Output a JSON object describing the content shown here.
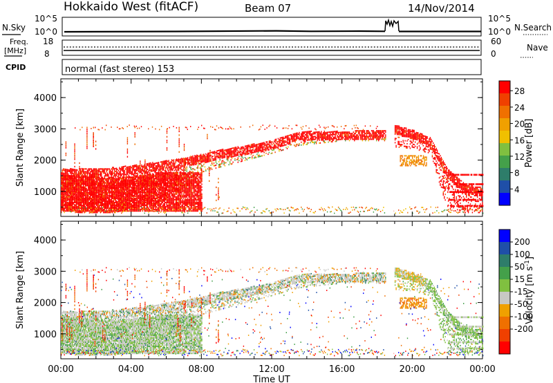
{
  "header": {
    "station": "Hokkaido West (fitACF)",
    "beam": "Beam 07",
    "date": "14/Nov/2014"
  },
  "strip": {
    "nsky_label": "N.Sky",
    "nsky_ticks": [
      "10^5",
      "10^0"
    ],
    "nsearch_label": "N.Search",
    "nsearch_ticks": [
      "10^5",
      "10^0"
    ],
    "freq_label_1": "Freq.",
    "freq_label_2": "[MHz]",
    "freq_ticks": [
      "18",
      "8"
    ],
    "nave_label": "Nave",
    "nave_ticks": [
      "60",
      "0"
    ],
    "cpid_label": "CPID",
    "cpid_text": "normal (fast stereo) 153"
  },
  "colors": {
    "power": [
      "#0000ff",
      "#1f4fa8",
      "#2e7d6a",
      "#44a04a",
      "#80c040",
      "#f0c000",
      "#f0a000",
      "#f07000",
      "#f04000",
      "#ff0000"
    ],
    "velocity": [
      "#ff0000",
      "#f04000",
      "#f07000",
      "#f0a000",
      "#c8c8c4",
      "#80c040",
      "#44a04a",
      "#2e7d6a",
      "#1f4fa8",
      "#0000ff"
    ],
    "gray": "#c8c8c4"
  },
  "chart_data": [
    {
      "type": "heatmap",
      "name": "power",
      "ylabel": "Slant Range [km]",
      "yticks": [
        "1000",
        "2000",
        "3000",
        "4000"
      ],
      "ylim": [
        200,
        4600
      ],
      "colorbar_label": "Power [dB]",
      "colorbar_ticks": [
        "4",
        "8",
        "12",
        "16",
        "20",
        "24",
        "28"
      ]
    },
    {
      "type": "heatmap",
      "name": "velocity",
      "ylabel": "Slant Range [km]",
      "yticks": [
        "1000",
        "2000",
        "3000",
        "4000"
      ],
      "ylim": [
        200,
        4600
      ],
      "colorbar_label": "Velocity [m s",
      "colorbar_label_sup": "-1",
      "colorbar_label_end": "]",
      "colorbar_ticks": [
        "200",
        "100",
        "50",
        "15",
        "-15",
        "-50",
        "-100",
        "-200"
      ]
    }
  ],
  "xaxis": {
    "title": "Time UT",
    "ticks": [
      "00:00",
      "04:00",
      "08:00",
      "12:00",
      "16:00",
      "20:00",
      "00:00"
    ]
  }
}
